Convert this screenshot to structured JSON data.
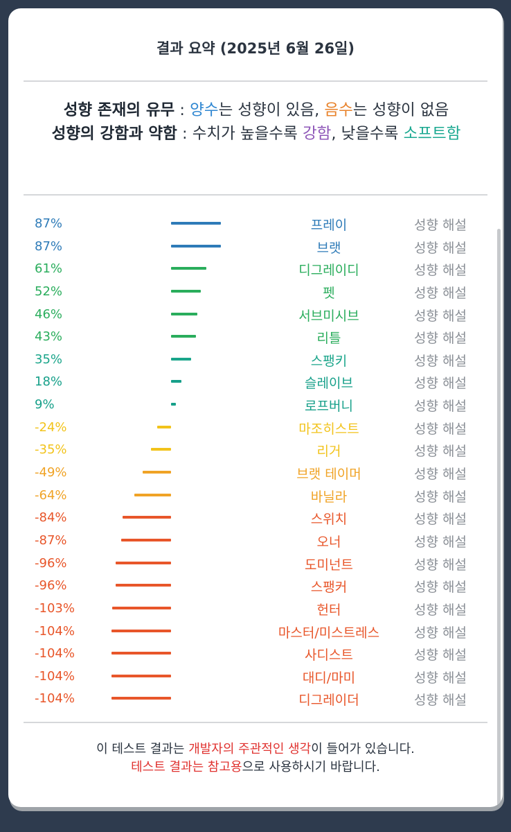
{
  "title": "결과 요약 (2025년 6월 26일)",
  "legend": {
    "line1_label": "성향 존재의 유무",
    "line1_sep": " : ",
    "positive_word": "양수",
    "line1_mid": "는 성향이 있음, ",
    "negative_word": "음수",
    "line1_end": "는 성향이 없음",
    "line2_label": "성향의 강함과 약함",
    "line2_sep": " : 수치가 높을수록 ",
    "strong_word": "강함",
    "line2_mid": ", 낮을수록 ",
    "soft_word": "소프트함"
  },
  "explain_label": "성향 해설",
  "colors": {
    "blue": "#2e7bb8",
    "green": "#2aad5c",
    "teal": "#17a08a",
    "yellow": "#f2c31b",
    "amber": "#f0a326",
    "red": "#e8562a",
    "red_dark": "#e44a26"
  },
  "chart_data": {
    "type": "bar",
    "orientation": "horizontal-diverging",
    "categories": [
      "프레이",
      "브랫",
      "디그레이디",
      "펫",
      "서브미시브",
      "리틀",
      "스팽키",
      "슬레이브",
      "로프버니",
      "마조히스트",
      "리거",
      "브랫 테이머",
      "바닐라",
      "스위치",
      "오너",
      "도미넌트",
      "스팽커",
      "헌터",
      "마스터/미스트레스",
      "사디스트",
      "대디/마미",
      "디그레이더"
    ],
    "values": [
      87,
      87,
      61,
      52,
      46,
      43,
      35,
      18,
      9,
      -24,
      -35,
      -49,
      -64,
      -84,
      -87,
      -96,
      -96,
      -103,
      -104,
      -104,
      -104,
      -104
    ],
    "labels": [
      "87%",
      "87%",
      "61%",
      "52%",
      "46%",
      "43%",
      "35%",
      "18%",
      "9%",
      "-24%",
      "-35%",
      "-49%",
      "-64%",
      "-84%",
      "-87%",
      "-96%",
      "-96%",
      "-103%",
      "-104%",
      "-104%",
      "-104%",
      "-104%"
    ],
    "colors": [
      "#2e7bb8",
      "#2e7bb8",
      "#2aad5c",
      "#2aad5c",
      "#2aad5c",
      "#2aad5c",
      "#1aa58a",
      "#17a08a",
      "#17a08a",
      "#f2c31b",
      "#f2c31b",
      "#f0a326",
      "#f0a326",
      "#e8562a",
      "#e8562a",
      "#e8562a",
      "#e8562a",
      "#e8562a",
      "#e8562a",
      "#e8562a",
      "#e8562a",
      "#e8562a"
    ]
  },
  "footer": {
    "line1_pre": "이 테스트 결과는 ",
    "line1_red": "개발자의 주관적인 생각",
    "line1_post": "이 들어가 있습니다.",
    "line2_red": "테스트 결과는 참고용",
    "line2_post": "으로 사용하시기 바랍니다."
  }
}
